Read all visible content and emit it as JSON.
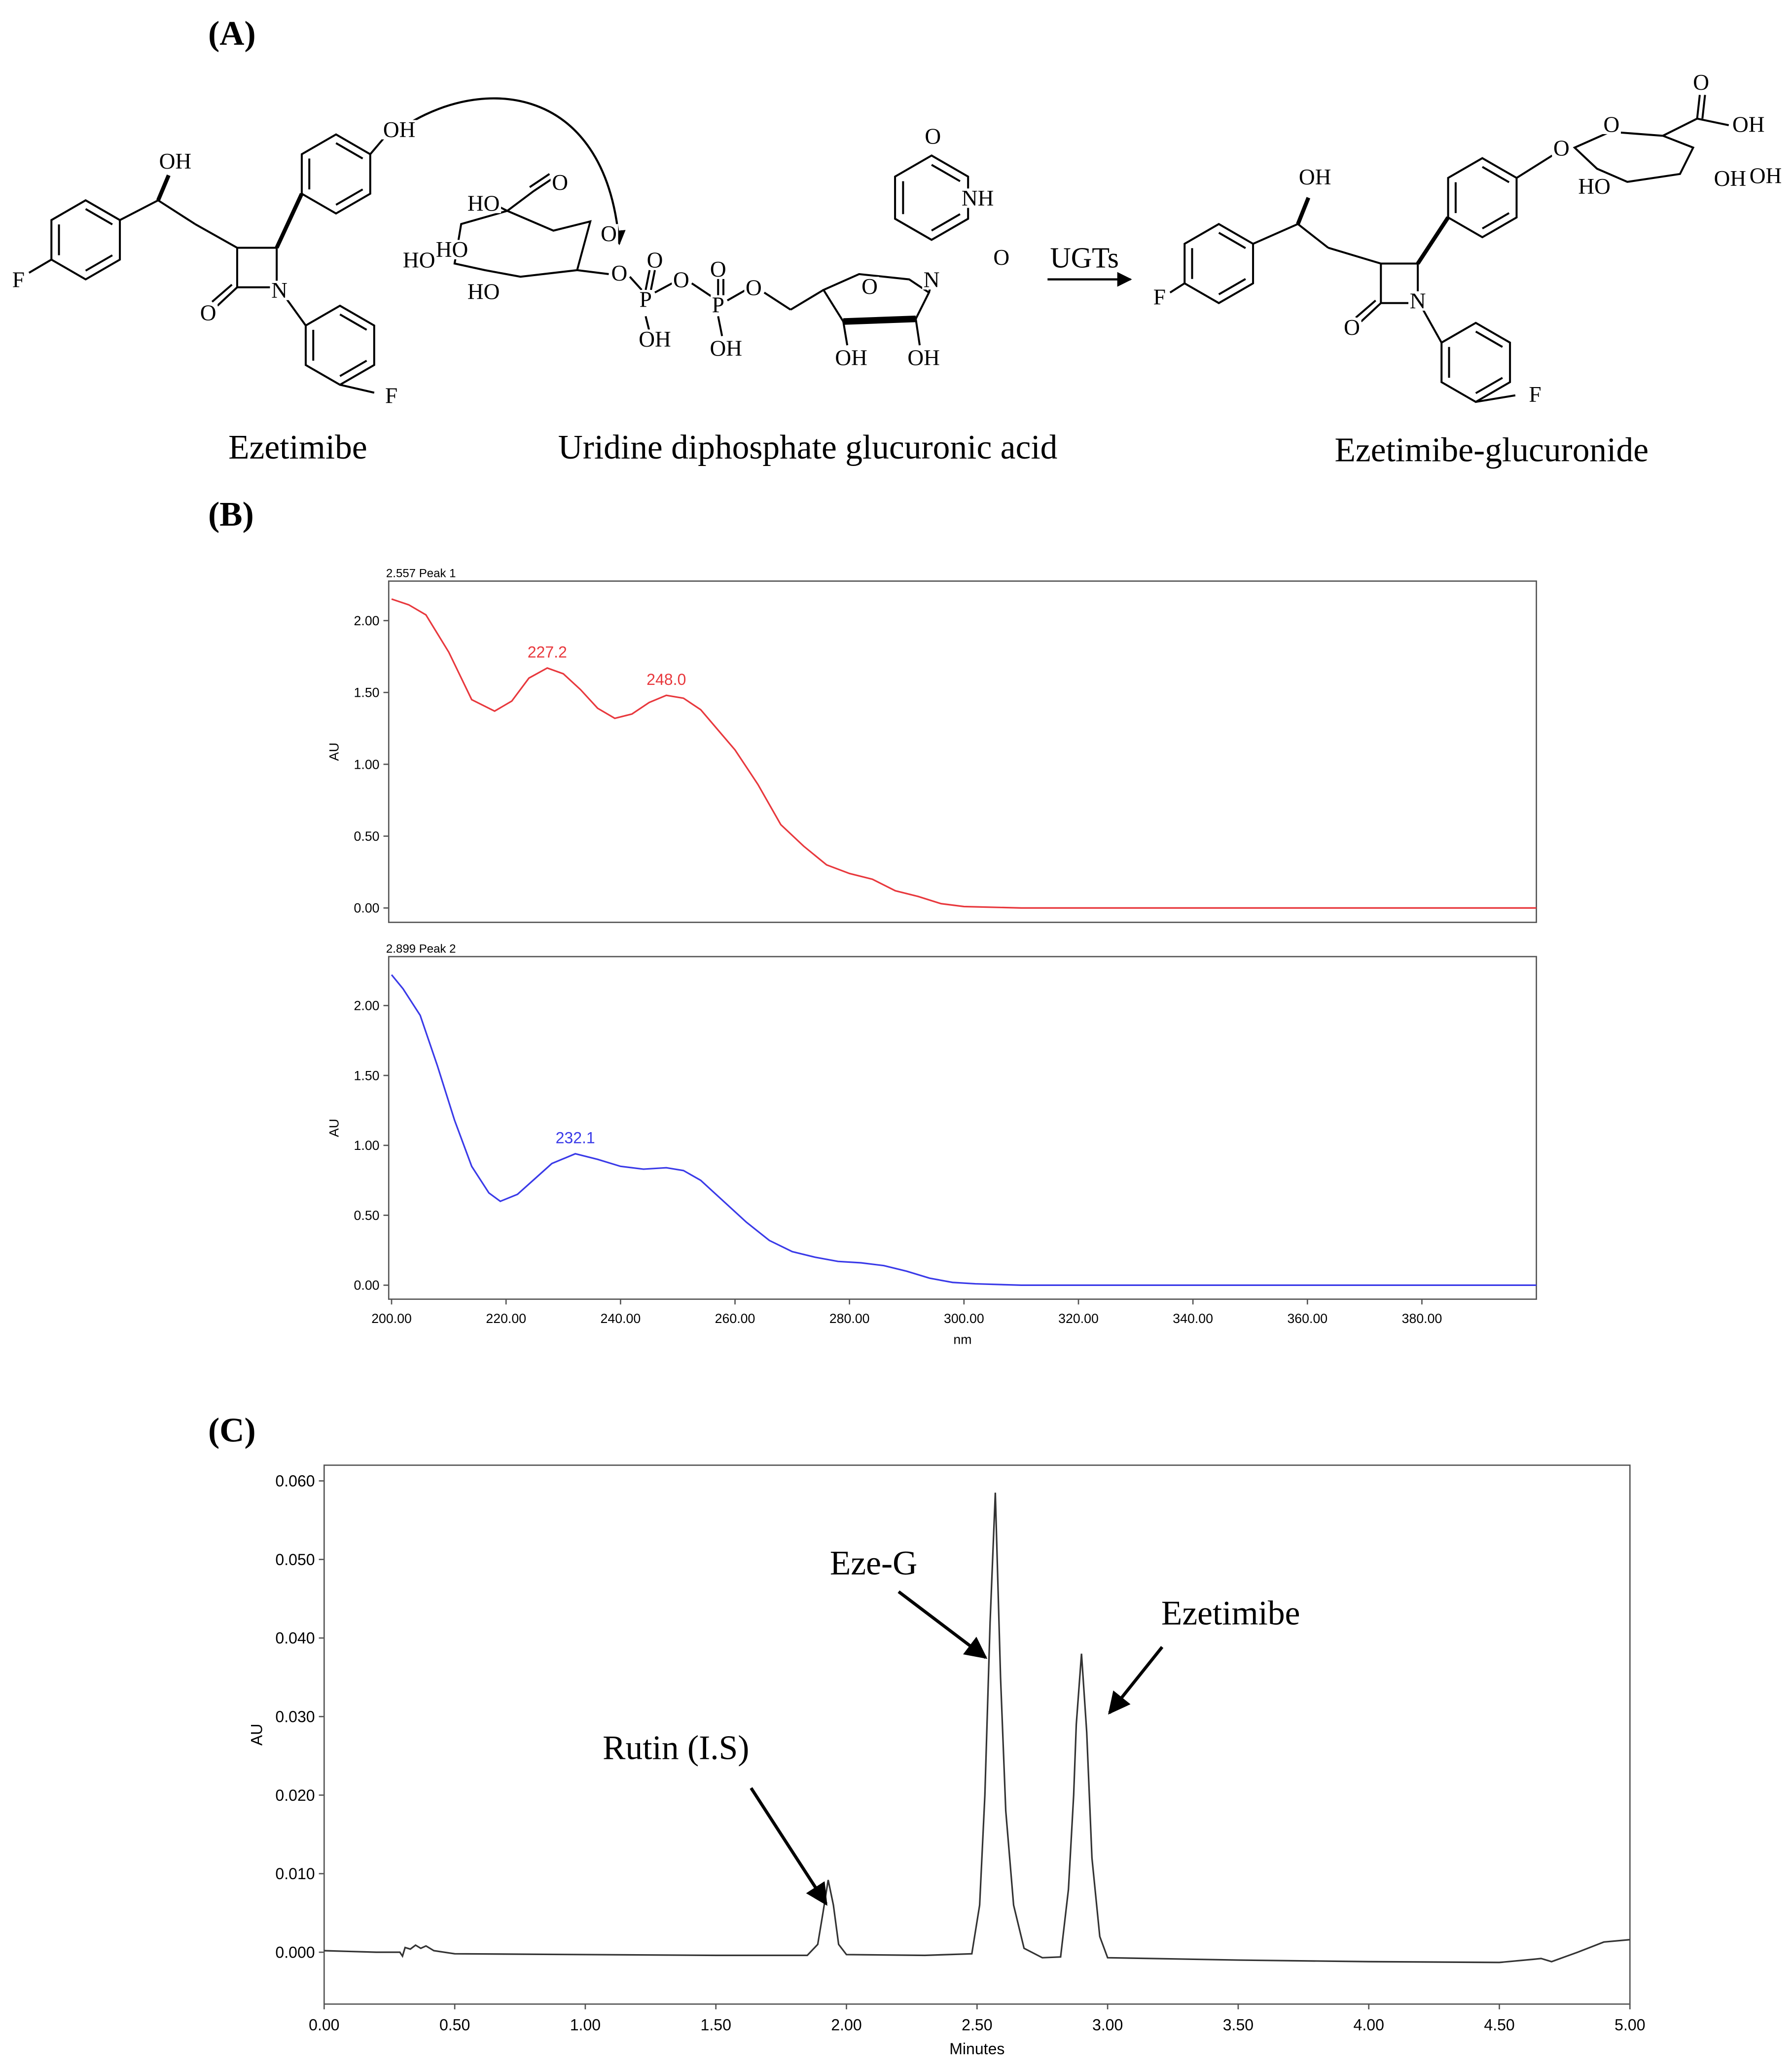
{
  "figure_labels": [
    "(A)",
    "(B)",
    "(C)"
  ],
  "reaction": {
    "molecules": [
      {
        "name": "Ezetimibe",
        "atoms": [
          "OH",
          "OH",
          "F",
          "O",
          "N",
          "F"
        ]
      },
      {
        "name": "Uridine diphosphate glucuronic acid",
        "atoms": [
          "HO",
          "O",
          "HO",
          "HO",
          "HO",
          "O",
          "O",
          "P",
          "O",
          "O",
          "P",
          "O",
          "O",
          "OH",
          "OH",
          "O",
          "OH",
          "OH",
          "O",
          "NH",
          "O",
          "N"
        ]
      },
      {
        "name": "Ezetimibe-glucuronide",
        "atoms": [
          "OH",
          "F",
          "O",
          "N",
          "F",
          "O",
          "O",
          "O",
          "OH",
          "HO",
          "OH",
          "OH"
        ]
      }
    ],
    "enzyme": "UGTs"
  },
  "chart_data": [
    {
      "type": "line",
      "header": "2.557 Peak 1",
      "y_label": "AU",
      "color": "#e8383d",
      "x": [
        200,
        203,
        206,
        210,
        214,
        218,
        221,
        224,
        227.2,
        230,
        233,
        236,
        239,
        242,
        245,
        248,
        251,
        254,
        257,
        260,
        264,
        268,
        272,
        276,
        280,
        284,
        288,
        292,
        296,
        300,
        310,
        330,
        360,
        400
      ],
      "values": [
        2.15,
        2.11,
        2.04,
        1.78,
        1.45,
        1.37,
        1.44,
        1.6,
        1.67,
        1.63,
        1.52,
        1.39,
        1.32,
        1.35,
        1.43,
        1.48,
        1.46,
        1.38,
        1.24,
        1.1,
        0.86,
        0.58,
        0.43,
        0.3,
        0.24,
        0.2,
        0.12,
        0.08,
        0.03,
        0.01,
        0.0,
        0.0,
        0.0,
        0.0
      ],
      "peak_labels": [
        {
          "value": 227.2,
          "label": "227.2"
        },
        {
          "value": 248.0,
          "label": "248.0"
        }
      ],
      "xlim": [
        199.5,
        400
      ],
      "ylim": [
        -0.1,
        2.275
      ],
      "yticks": [
        {
          "value": 0,
          "label": "0.00"
        },
        {
          "value": 0.5,
          "label": "0.50"
        },
        {
          "value": 1.0,
          "label": "1.00"
        },
        {
          "value": 1.5,
          "label": "1.50"
        },
        {
          "value": 2.0,
          "label": "2.00"
        }
      ]
    },
    {
      "type": "line",
      "header": "2.899 Peak 2",
      "y_label": "AU",
      "x_label": "nm",
      "color": "#3a3ae8",
      "x": [
        200,
        202,
        205,
        208,
        211,
        214,
        217,
        219,
        222,
        225,
        228,
        232.1,
        236,
        240,
        244,
        248,
        251,
        254,
        258,
        262,
        266,
        270,
        274,
        278,
        282,
        286,
        290,
        294,
        298,
        302,
        310,
        330,
        360,
        400
      ],
      "values": [
        2.22,
        2.12,
        1.93,
        1.57,
        1.18,
        0.85,
        0.66,
        0.6,
        0.65,
        0.76,
        0.87,
        0.94,
        0.9,
        0.85,
        0.83,
        0.84,
        0.82,
        0.75,
        0.6,
        0.45,
        0.32,
        0.24,
        0.2,
        0.17,
        0.16,
        0.14,
        0.1,
        0.05,
        0.02,
        0.01,
        0.0,
        0.0,
        0.0,
        0.0
      ],
      "peak_labels": [
        {
          "value": 232.1,
          "label": "232.1"
        }
      ],
      "xlim": [
        199.5,
        400
      ],
      "ylim": [
        -0.1,
        2.35
      ],
      "xticks": [
        {
          "value": 200,
          "label": "200.00"
        },
        {
          "value": 220,
          "label": "220.00"
        },
        {
          "value": 240,
          "label": "240.00"
        },
        {
          "value": 260,
          "label": "260.00"
        },
        {
          "value": 280,
          "label": "280.00"
        },
        {
          "value": 300,
          "label": "300.00"
        },
        {
          "value": 320,
          "label": "320.00"
        },
        {
          "value": 340,
          "label": "340.00"
        },
        {
          "value": 360,
          "label": "360.00"
        },
        {
          "value": 380,
          "label": "380.00"
        }
      ],
      "yticks": [
        {
          "value": 0,
          "label": "0.00"
        },
        {
          "value": 0.5,
          "label": "0.50"
        },
        {
          "value": 1.0,
          "label": "1.00"
        },
        {
          "value": 1.5,
          "label": "1.50"
        },
        {
          "value": 2.0,
          "label": "2.00"
        }
      ]
    },
    {
      "type": "line",
      "y_label": "AU",
      "x_label": "Minutes",
      "color": "#333333",
      "x": [
        0,
        0.1,
        0.2,
        0.29,
        0.3,
        0.31,
        0.33,
        0.35,
        0.37,
        0.39,
        0.42,
        0.5,
        1.0,
        1.5,
        1.85,
        1.89,
        1.91,
        1.93,
        1.95,
        1.97,
        2.0,
        2.3,
        2.48,
        2.51,
        2.53,
        2.55,
        2.57,
        2.59,
        2.61,
        2.64,
        2.68,
        2.75,
        2.82,
        2.85,
        2.87,
        2.88,
        2.9,
        2.92,
        2.94,
        2.97,
        3.0,
        3.5,
        4.0,
        4.5,
        4.63,
        4.66,
        4.7,
        4.8,
        4.9,
        5.0
      ],
      "values": [
        0.0002,
        0.0001,
        0.0,
        0.0,
        -0.0005,
        0.0006,
        0.0004,
        0.0009,
        0.0005,
        0.0008,
        0.0002,
        -0.0002,
        -0.0003,
        -0.0004,
        -0.0004,
        0.001,
        0.005,
        0.0092,
        0.006,
        0.001,
        -0.0003,
        -0.0004,
        -0.0002,
        0.006,
        0.02,
        0.042,
        0.0585,
        0.035,
        0.018,
        0.006,
        0.0005,
        -0.0007,
        -0.0006,
        0.008,
        0.02,
        0.029,
        0.038,
        0.028,
        0.012,
        0.002,
        -0.0007,
        -0.001,
        -0.0012,
        -0.0013,
        -0.0009,
        -0.0008,
        -0.0012,
        0.0,
        0.0013,
        0.0016
      ],
      "annotations": [
        "Rutin (I.S)",
        "Eze-G",
        "Ezetimibe"
      ],
      "xlim": [
        0,
        5
      ],
      "ylim": [
        -0.0066,
        0.062
      ],
      "xticks": [
        {
          "value": 0,
          "label": "0.00"
        },
        {
          "value": 0.5,
          "label": "0.50"
        },
        {
          "value": 1.0,
          "label": "1.00"
        },
        {
          "value": 1.5,
          "label": "1.50"
        },
        {
          "value": 2.0,
          "label": "2.00"
        },
        {
          "value": 2.5,
          "label": "2.50"
        },
        {
          "value": 3.0,
          "label": "3.00"
        },
        {
          "value": 3.5,
          "label": "3.50"
        },
        {
          "value": 4.0,
          "label": "4.00"
        },
        {
          "value": 4.5,
          "label": "4.50"
        },
        {
          "value": 5.0,
          "label": "5.00"
        }
      ],
      "yticks": [
        {
          "value": 0,
          "label": "0.000"
        },
        {
          "value": 0.01,
          "label": "0.010"
        },
        {
          "value": 0.02,
          "label": "0.020"
        },
        {
          "value": 0.03,
          "label": "0.030"
        },
        {
          "value": 0.04,
          "label": "0.040"
        },
        {
          "value": 0.05,
          "label": "0.050"
        },
        {
          "value": 0.06,
          "label": "0.060"
        }
      ]
    }
  ]
}
